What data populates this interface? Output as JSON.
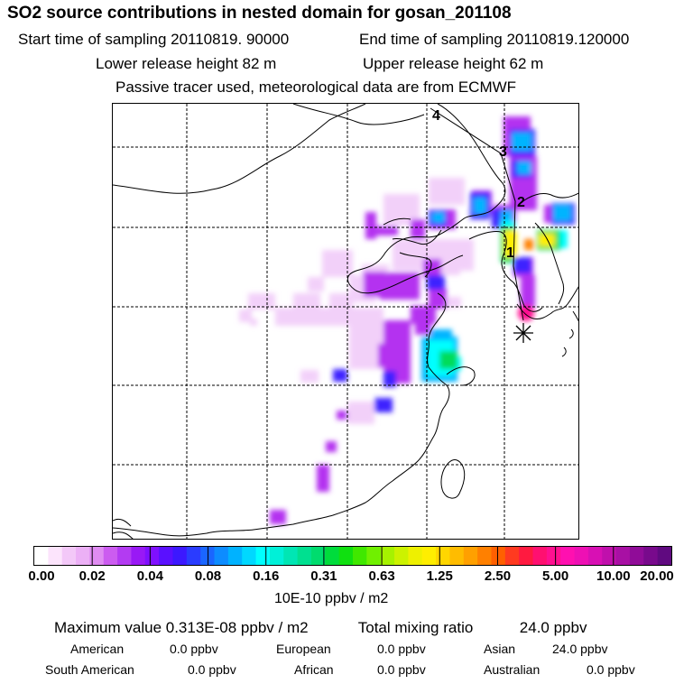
{
  "title": "SO2 source contributions in nested domain for gosan_201108",
  "sampling": {
    "start": "Start time of sampling 20110819. 90000",
    "end": "End time of sampling 20110819.120000"
  },
  "release": {
    "lower": "Lower release height   82 m",
    "upper": "Upper release height   62 m"
  },
  "note": "Passive tracer used, meteorological data are from ECMWF",
  "chart_data": {
    "type": "heatmap",
    "title": "SO2 source contributions in nested domain for gosan_201108",
    "colorbar": {
      "unit": "10E-10 ppbv / m2",
      "tick_labels": [
        "0.00",
        "0.02",
        "0.04",
        "0.08",
        "0.16",
        "0.31",
        "0.63",
        "1.25",
        "2.50",
        "5.00",
        "10.00",
        "20.00"
      ],
      "colors": [
        "#ffffff",
        "#fce4fc",
        "#f3c8f8",
        "#ecb0f6",
        "#e08cf2",
        "#cc5cf0",
        "#b33bf2",
        "#9919f5",
        "#7f10ff",
        "#5a10ff",
        "#3c18ff",
        "#2a3cff",
        "#1a66ff",
        "#0d8cff",
        "#00b2ff",
        "#00d8ff",
        "#00ffff",
        "#00f0d8",
        "#00e6b4",
        "#00e090",
        "#00dc6e",
        "#00dc3c",
        "#10e010",
        "#40e800",
        "#70f000",
        "#a6f200",
        "#ccf200",
        "#eef000",
        "#ffee00",
        "#ffd600",
        "#ffbc00",
        "#ffa000",
        "#ff8000",
        "#ff6000",
        "#ff3a20",
        "#ff1a40",
        "#ff1070",
        "#ff1090",
        "#ff10b0",
        "#ee10b4",
        "#d810b4",
        "#c010ac",
        "#a810a4",
        "#900c98",
        "#780a8c",
        "#600a80"
      ]
    },
    "markers": [
      "1",
      "2",
      "3",
      "4"
    ],
    "receptor": "Gosan (asterisk)",
    "max_value": "0.313E-08",
    "total_mixing_ratio": "24.0",
    "plumes": [
      {
        "level": 3,
        "x": 100,
        "y": 185
      },
      {
        "level": 4,
        "x": 0,
        "y": 0
      }
    ]
  },
  "summary": {
    "max_label": "Maximum value  0.313E-08 ppbv / m2",
    "total_label": "Total mixing ratio",
    "total_value": "24.0 ppbv"
  },
  "regions": [
    {
      "name": "American",
      "value": "0.0 ppbv"
    },
    {
      "name": "European",
      "value": "0.0 ppbv"
    },
    {
      "name": "Asian",
      "value": "24.0 ppbv"
    },
    {
      "name": "South American",
      "value": "0.0 ppbv"
    },
    {
      "name": "African",
      "value": "0.0 ppbv"
    },
    {
      "name": "Australian",
      "value": "0.0 ppbv"
    }
  ]
}
